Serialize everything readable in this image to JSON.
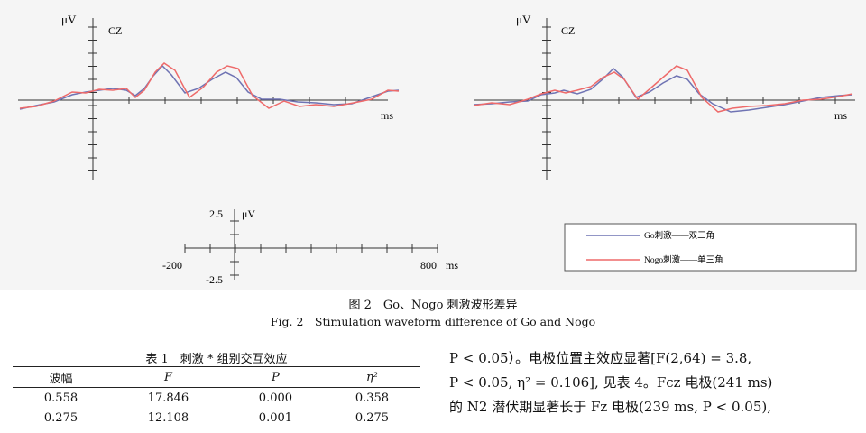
{
  "figure": {
    "panels": [
      {
        "ylabel": "μV",
        "electrode": "CZ",
        "xunit": "ms"
      },
      {
        "ylabel": "μV",
        "electrode": "CZ",
        "xunit": "ms"
      }
    ],
    "scale": {
      "y_tick": "2.5",
      "y_unit": "μV",
      "y_tick_neg": "-2.5",
      "x_min": "-200",
      "x_max": "800",
      "x_unit": "ms"
    },
    "legend": [
      {
        "label": "Go刺激——双三角",
        "color": "#6f73b3"
      },
      {
        "label": "Nogo刺激——单三角",
        "color": "#ee6a6a"
      }
    ],
    "caption_cn": "图 2　Go、Nogo 刺激波形差异",
    "caption_en": "Fig. 2　Stimulation waveform difference of Go and Nogo"
  },
  "table": {
    "title": "表 1　刺激 * 组别交互效应",
    "headers": [
      "波幅",
      "F",
      "P",
      "η²"
    ],
    "rows": [
      [
        "0.558",
        "17.846",
        "0.000",
        "0.358"
      ],
      [
        "0.275",
        "12.108",
        "0.001",
        "0.275"
      ]
    ]
  },
  "body_text": {
    "line1": "P < 0.05）。电极位置主效应显著[F(2,64) = 3.8,",
    "line2": "P < 0.05, η² = 0.106], 见表 4。Fcz 电极(241 ms)",
    "line3": "的 N2 潜伏期显著长于 Fz 电极(239 ms, P < 0.05),"
  }
}
